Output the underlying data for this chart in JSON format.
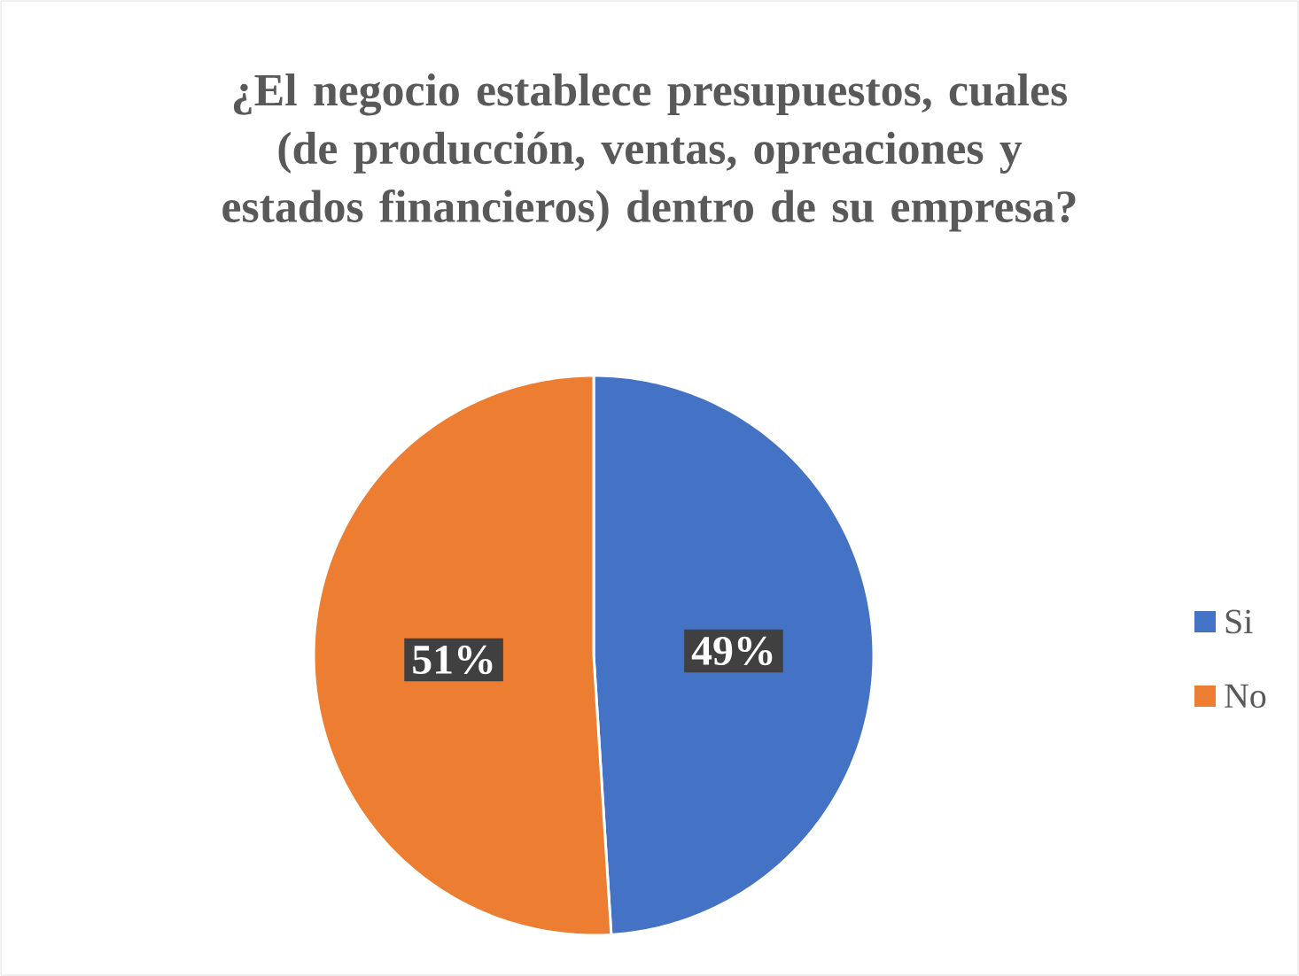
{
  "chart_data": {
    "type": "pie",
    "title": "¿El negocio establece presupuestos, cuales (de producción, ventas, opreaciones y estados financieros) dentro de su empresa?",
    "categories": [
      "Si",
      "No"
    ],
    "values": [
      49,
      51
    ],
    "value_labels": [
      "49%",
      "51%"
    ],
    "colors": [
      "#4472c4",
      "#ed7d31"
    ],
    "legend": "right"
  }
}
